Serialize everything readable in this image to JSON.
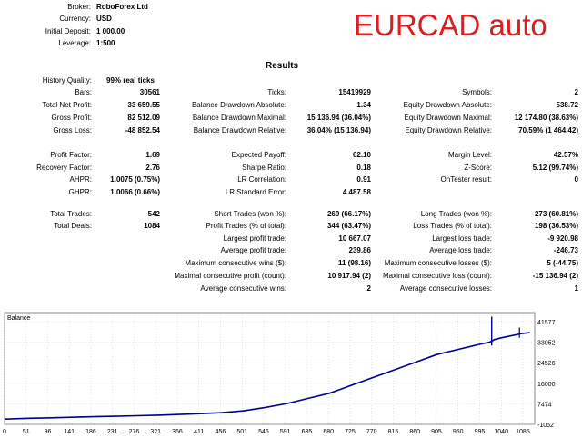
{
  "header": {
    "fields": [
      {
        "label": "Broker:",
        "value": "RoboForex Ltd"
      },
      {
        "label": "Currency:",
        "value": "USD"
      },
      {
        "label": "Initial Deposit:",
        "value": "1 000.00"
      },
      {
        "label": "Leverage:",
        "value": "1:500"
      }
    ]
  },
  "overlay_title": "EURCAD auto",
  "results_title": "Results",
  "history_quality": {
    "label": "History Quality:",
    "value": "99% real ticks"
  },
  "col1": [
    {
      "label": "Bars:",
      "value": "30561"
    },
    {
      "label": "Total Net Profit:",
      "value": "33 659.55"
    },
    {
      "label": "Gross Profit:",
      "value": "82 512.09"
    },
    {
      "label": "Gross Loss:",
      "value": "-48 852.54"
    },
    {
      "label": "Profit Factor:",
      "value": "1.69"
    },
    {
      "label": "Recovery Factor:",
      "value": "2.76"
    },
    {
      "label": "AHPR:",
      "value": "1.0075 (0.75%)"
    },
    {
      "label": "GHPR:",
      "value": "1.0066 (0.66%)"
    },
    {
      "label": "Total Trades:",
      "value": "542"
    },
    {
      "label": "Total Deals:",
      "value": "1084"
    }
  ],
  "col2": [
    {
      "label": "Ticks:",
      "value": "15419929"
    },
    {
      "label": "Balance Drawdown Absolute:",
      "value": "1.34"
    },
    {
      "label": "Balance Drawdown Maximal:",
      "value": "15 136.94 (36.04%)"
    },
    {
      "label": "Balance Drawdown Relative:",
      "value": "36.04% (15 136.94)"
    },
    {
      "label": "Expected Payoff:",
      "value": "62.10"
    },
    {
      "label": "Sharpe Ratio:",
      "value": "0.18"
    },
    {
      "label": "LR Correlation:",
      "value": "0.91"
    },
    {
      "label": "LR Standard Error:",
      "value": "4 487.58"
    },
    {
      "label": "Short Trades (won %):",
      "value": "269 (66.17%)"
    },
    {
      "label": "Profit Trades (% of total):",
      "value": "344 (63.47%)"
    },
    {
      "label": "Largest profit trade:",
      "value": "10 667.07"
    },
    {
      "label": "Average profit trade:",
      "value": "239.86"
    },
    {
      "label": "Maximum consecutive wins ($):",
      "value": "11 (98.16)"
    },
    {
      "label": "Maximal consecutive profit (count):",
      "value": "10 917.94 (2)"
    },
    {
      "label": "Average consecutive wins:",
      "value": "2"
    }
  ],
  "col3": [
    {
      "label": "Symbols:",
      "value": "2"
    },
    {
      "label": "Equity Drawdown Absolute:",
      "value": "538.72"
    },
    {
      "label": "Equity Drawdown Maximal:",
      "value": "12 174.80 (38.63%)"
    },
    {
      "label": "Equity Drawdown Relative:",
      "value": "70.59% (1 464.42)"
    },
    {
      "label": "Margin Level:",
      "value": "42.57%"
    },
    {
      "label": "Z-Score:",
      "value": "5.12 (99.74%)"
    },
    {
      "label": "OnTester result:",
      "value": "0"
    },
    {
      "label": "Long Trades (won %):",
      "value": "273 (60.81%)"
    },
    {
      "label": "Loss Trades (% of total):",
      "value": "198 (36.53%)"
    },
    {
      "label": "Largest loss trade:",
      "value": "-9 920.98"
    },
    {
      "label": "Average loss trade:",
      "value": "-246.73"
    },
    {
      "label": "Maximum consecutive losses ($):",
      "value": "5 (-44.75)"
    },
    {
      "label": "Maximal consecutive loss (count):",
      "value": "-15 136.94 (2)"
    },
    {
      "label": "Average consecutive losses:",
      "value": "1"
    }
  ],
  "chart_data": {
    "type": "line",
    "title": "Balance",
    "xlabel": "",
    "ylabel": "",
    "x_ticks": [
      "0",
      "51",
      "96",
      "141",
      "186",
      "231",
      "276",
      "321",
      "366",
      "411",
      "456",
      "501",
      "546",
      "591",
      "635",
      "680",
      "725",
      "770",
      "815",
      "860",
      "905",
      "950",
      "995",
      "1040",
      "1085"
    ],
    "y_ticks": [
      "41577",
      "33052",
      "24526",
      "16000",
      "7474",
      "-1052"
    ],
    "ylim": [
      -1052,
      41577
    ],
    "xlim": [
      0,
      1110
    ],
    "grid": true,
    "color": "#00008b",
    "series": [
      {
        "x": [
          0,
          51,
          96,
          141,
          186,
          231,
          276,
          321,
          366,
          411,
          456,
          501,
          546,
          591,
          635,
          680,
          725,
          770,
          815,
          860,
          905,
          950,
          995,
          1015,
          1020,
          1025,
          1040,
          1085,
          1100
        ],
        "y": [
          1000,
          1300,
          1500,
          1700,
          1900,
          2100,
          2300,
          2500,
          2800,
          3100,
          3500,
          4200,
          5500,
          7000,
          9000,
          11000,
          14000,
          17000,
          20000,
          23000,
          26000,
          28000,
          30000,
          30800,
          31200,
          31800,
          32500,
          34200,
          34500
        ]
      }
    ],
    "spike": {
      "x": 1020,
      "y_high": 40700,
      "y_low": 29500
    }
  }
}
